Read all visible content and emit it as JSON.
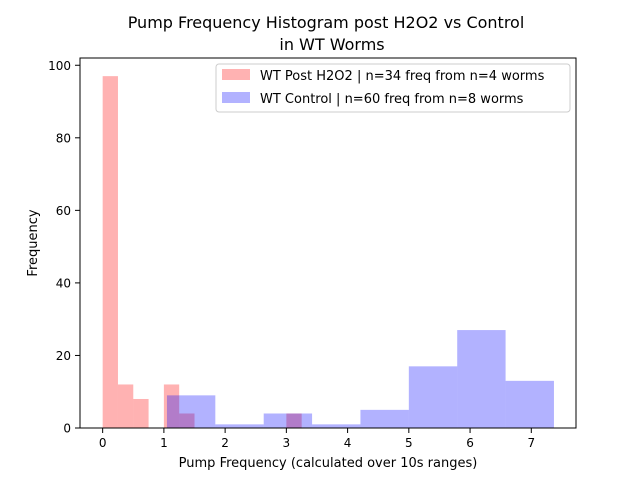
{
  "chart_data": {
    "type": "bar",
    "title": "Pump Frequency Histogram post H2O2 vs Control",
    "subtitle": "in WT Worms",
    "xlabel": "Pump Frequency (calculated over 10s ranges)",
    "ylabel": "Frequency",
    "xlim": [
      -0.37,
      7.73
    ],
    "ylim": [
      0,
      102
    ],
    "xticks": [
      "0",
      "1",
      "2",
      "3",
      "4",
      "5",
      "6",
      "7"
    ],
    "yticks": [
      "0",
      "20",
      "40",
      "60",
      "80",
      "100"
    ],
    "grid": false,
    "legend_position": "top-right",
    "series": [
      {
        "name": "WT Post H2O2 | n=34 freq from n=4 worms",
        "color": "#ff0000",
        "opacity": 0.3,
        "bins": [
          {
            "x0": 0.0,
            "x1": 0.25,
            "value": 97
          },
          {
            "x0": 0.25,
            "x1": 0.5,
            "value": 12
          },
          {
            "x0": 0.5,
            "x1": 0.75,
            "value": 8
          },
          {
            "x0": 0.75,
            "x1": 1.0,
            "value": 0
          },
          {
            "x0": 1.0,
            "x1": 1.25,
            "value": 12
          },
          {
            "x0": 1.25,
            "x1": 1.5,
            "value": 4
          },
          {
            "x0": 3.0,
            "x1": 3.25,
            "value": 4
          }
        ]
      },
      {
        "name": "WT Control | n=60 freq from n=8 worms",
        "color": "#0000ff",
        "opacity": 0.3,
        "bins": [
          {
            "x0": 1.05,
            "x1": 1.84,
            "value": 9
          },
          {
            "x0": 1.84,
            "x1": 2.63,
            "value": 1
          },
          {
            "x0": 2.63,
            "x1": 3.42,
            "value": 4
          },
          {
            "x0": 3.42,
            "x1": 4.21,
            "value": 1
          },
          {
            "x0": 4.21,
            "x1": 5.0,
            "value": 5
          },
          {
            "x0": 5.0,
            "x1": 5.79,
            "value": 17
          },
          {
            "x0": 5.79,
            "x1": 6.58,
            "value": 27
          },
          {
            "x0": 6.58,
            "x1": 7.37,
            "value": 13
          }
        ]
      }
    ]
  }
}
